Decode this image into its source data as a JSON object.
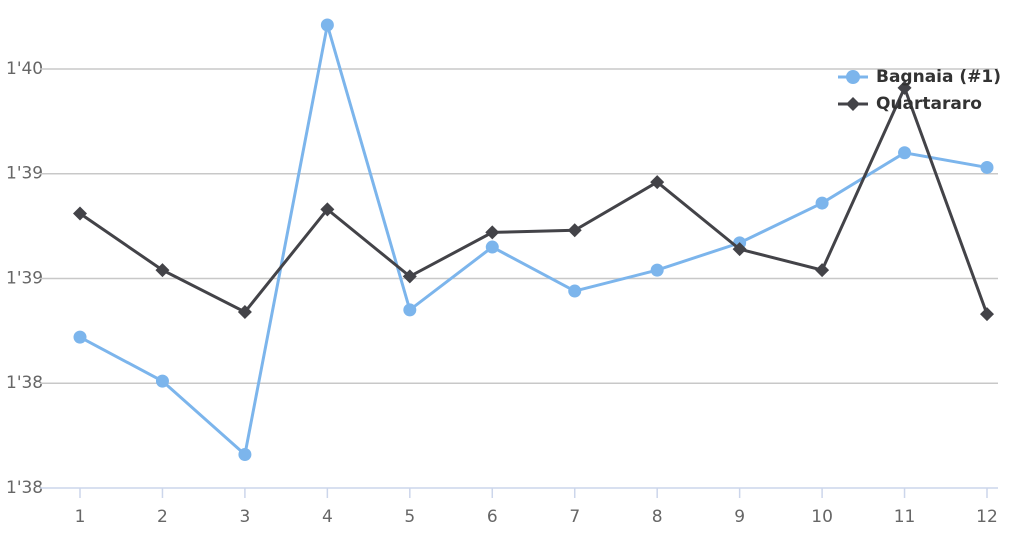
{
  "chart_data": {
    "type": "line",
    "categories": [
      "1",
      "2",
      "3",
      "4",
      "5",
      "6",
      "7",
      "8",
      "9",
      "10",
      "11",
      "12"
    ],
    "series": [
      {
        "name": "Bagnaia (#1)",
        "color": "#7cb5ec",
        "marker": "circle",
        "values": [
          98.72,
          98.51,
          98.16,
          100.21,
          98.85,
          99.15,
          98.94,
          99.04,
          99.17,
          99.36,
          99.6,
          99.53
        ]
      },
      {
        "name": "Quartararo",
        "color": "#434348",
        "marker": "diamond",
        "values": [
          99.31,
          99.04,
          98.84,
          99.33,
          99.01,
          99.22,
          99.23,
          99.46,
          99.14,
          99.04,
          99.91,
          98.83
        ]
      }
    ],
    "ylim": [
      98,
      100.25
    ],
    "yticks": [
      {
        "value": 98,
        "label": "1'38"
      },
      {
        "value": 98.5,
        "label": "1'38"
      },
      {
        "value": 99,
        "label": "1'39"
      },
      {
        "value": 99.5,
        "label": "1'39"
      },
      {
        "value": 100,
        "label": "1'40"
      }
    ],
    "grid": true,
    "legend": "top-right"
  }
}
